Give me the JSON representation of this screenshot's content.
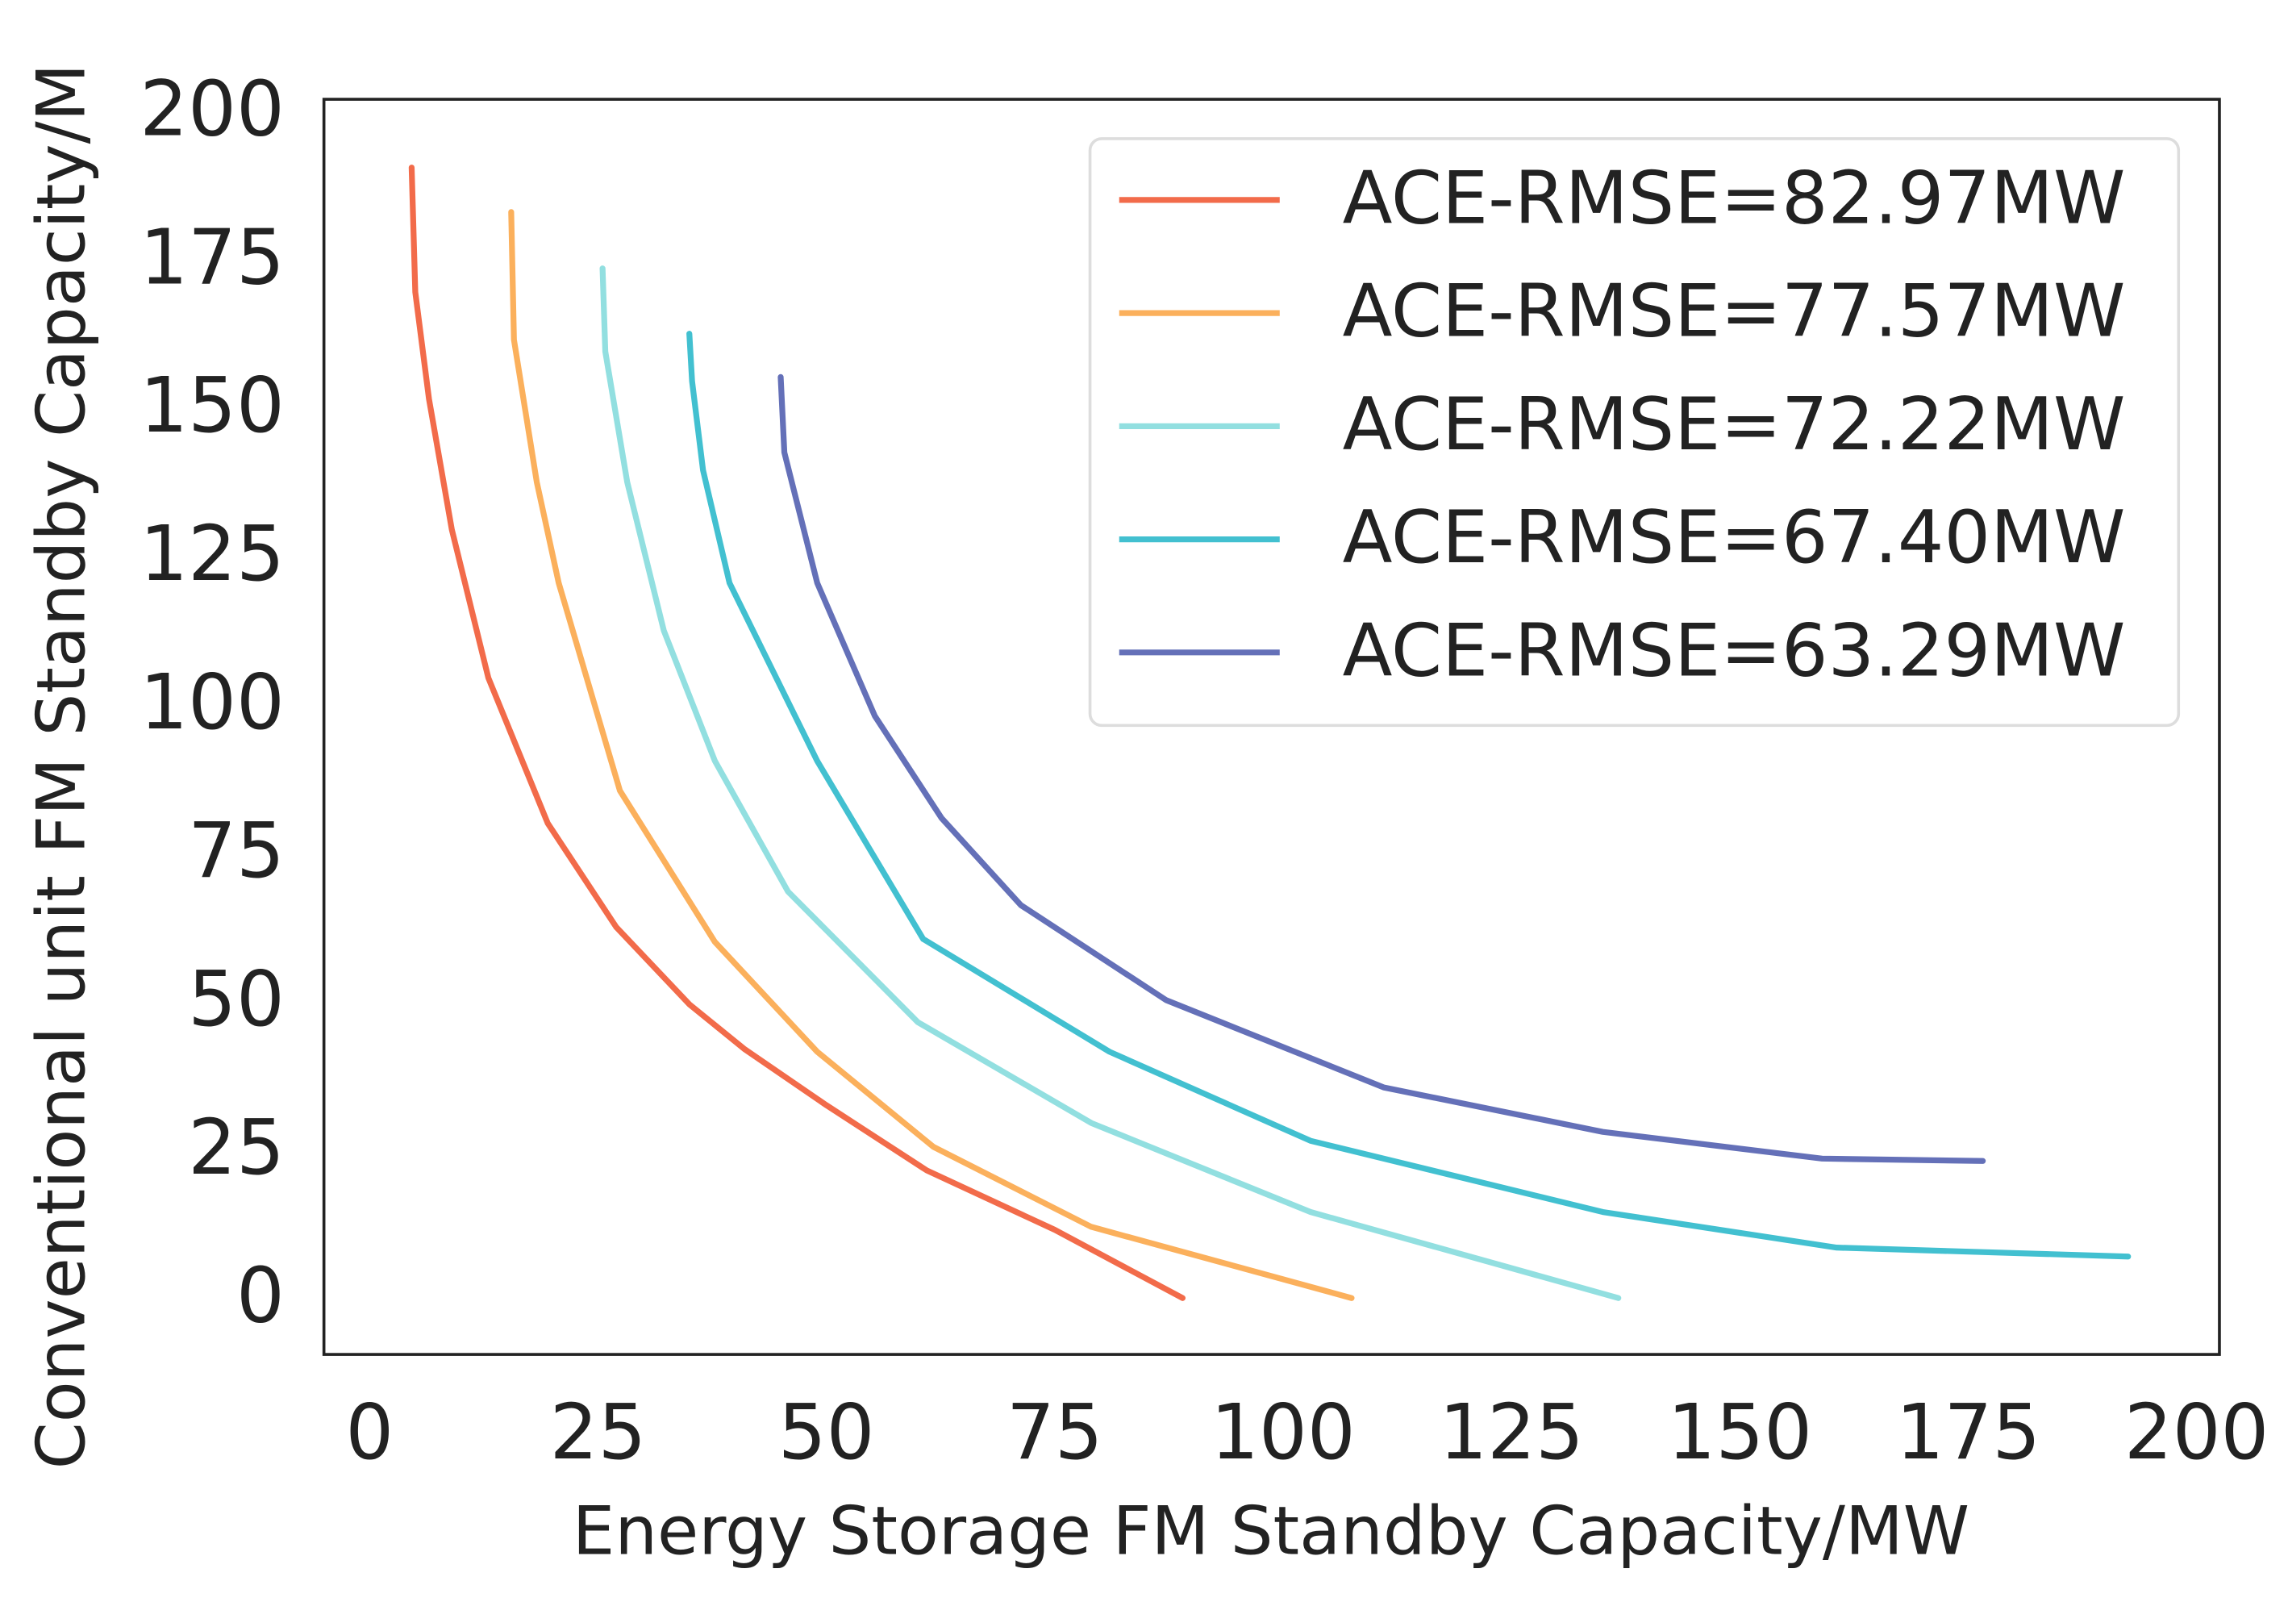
{
  "chart_data": {
    "type": "line",
    "x_label": "Energy Storage FM Standby Capacity/MW",
    "y_label": "Conventional unit FM Standby Capacity/M",
    "xlim": [
      -5,
      202.5
    ],
    "ylim": [
      -9,
      202.5
    ],
    "xticks": [
      0,
      25,
      50,
      75,
      100,
      125,
      150,
      175,
      200
    ],
    "yticks": [
      0,
      25,
      50,
      75,
      100,
      125,
      150,
      175,
      200
    ],
    "grid": false,
    "legend": "upper right",
    "series": [
      {
        "name": "ACE-RMSE=82.97MW",
        "color": "#f26b4a",
        "x": [
          4.6,
          5,
          6.5,
          9,
          13,
          19.5,
          27,
          35,
          41,
          50,
          61,
          75,
          89
        ],
        "values": [
          191,
          170,
          152,
          130,
          105,
          80.5,
          63,
          50,
          42.5,
          33,
          22,
          12,
          0.5
        ]
      },
      {
        "name": "ACE-RMSE=77.57MW",
        "color": "#fbb05c",
        "x": [
          15.5,
          15.8,
          18.3,
          20.7,
          27.4,
          37.8,
          49,
          61.7,
          79,
          107.5
        ],
        "values": [
          183.5,
          162,
          138,
          121,
          86,
          60.5,
          42,
          26,
          12.5,
          0.5
        ]
      },
      {
        "name": "ACE-RMSE=72.22MW",
        "color": "#92dfe0",
        "x": [
          25.5,
          25.8,
          28.2,
          32.2,
          37.8,
          45.8,
          60,
          79,
          103,
          136.7
        ],
        "values": [
          174,
          160,
          138,
          113,
          91,
          69,
          47,
          30,
          15,
          0.5
        ]
      },
      {
        "name": "ACE-RMSE=67.40MW",
        "color": "#42c0d0",
        "x": [
          35,
          35.3,
          36.5,
          39.4,
          49,
          60.6,
          81,
          103,
          135,
          160.6,
          192.5
        ],
        "values": [
          163,
          155,
          140,
          121,
          91,
          61,
          42,
          27,
          15,
          9,
          7.5
        ]
      },
      {
        "name": "ACE-RMSE=63.29MW",
        "color": "#6470b8",
        "x": [
          45,
          45.4,
          49,
          55.3,
          62.6,
          71.3,
          87.2,
          111,
          135,
          159,
          176.6
        ],
        "values": [
          155.7,
          143,
          121,
          98.6,
          81.4,
          66.7,
          50.7,
          36,
          28.5,
          24,
          23.6
        ]
      }
    ]
  }
}
